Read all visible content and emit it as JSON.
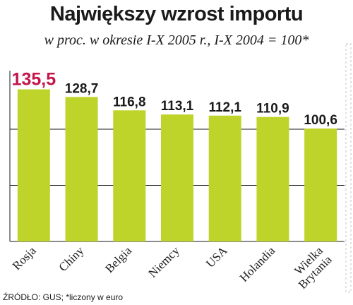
{
  "title": "Największy wzrost importu",
  "subtitle": "w proc. w okresie I-X 2005 r., I-X 2004 = 100*",
  "source": "ŹRÓDŁO: GUS; *liczony w euro",
  "colors": {
    "bar": "#bfd42a",
    "highlight_label": "#c4164a",
    "label": "#1a1a1a",
    "grid": "#1a1a1a",
    "frame_stripe": "#d9d9d9"
  },
  "chart_data": {
    "type": "bar",
    "title": "Największy wzrost importu",
    "subtitle": "w proc. w okresie I-X 2005 r., I-X 2004 = 100*",
    "categories": [
      "Rosja",
      "Chiny",
      "Belgia",
      "Niemcy",
      "USA",
      "Holandia",
      "Wielka Brytania"
    ],
    "category_lines": [
      [
        "Rosja"
      ],
      [
        "Chiny"
      ],
      [
        "Belgia"
      ],
      [
        "Niemcy"
      ],
      [
        "USA"
      ],
      [
        "Holandia"
      ],
      [
        "Wielka",
        "Brytania"
      ]
    ],
    "values": [
      135.5,
      128.7,
      116.8,
      113.1,
      112.1,
      110.9,
      100.6
    ],
    "value_labels": [
      "135,5",
      "128,7",
      "116,8",
      "113,1",
      "112,1",
      "110,9",
      "100,6"
    ],
    "highlight_index": 0,
    "ylim": [
      0,
      140
    ],
    "gridlines": [
      50,
      100
    ],
    "xlabel": "",
    "ylabel": "",
    "grid": true
  }
}
